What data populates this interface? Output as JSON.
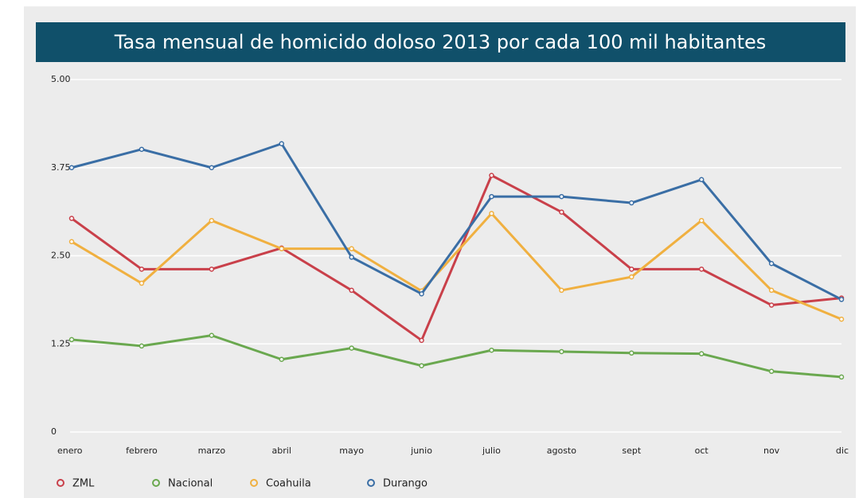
{
  "chart_data": {
    "type": "line",
    "title": "Tasa mensual de homicido doloso 2013 por cada 100 mil habitantes",
    "categories": [
      "enero",
      "febrero",
      "marzo",
      "abril",
      "mayo",
      "junio",
      "julio",
      "agosto",
      "sept",
      "oct",
      "nov",
      "dic"
    ],
    "series": [
      {
        "name": "ZML",
        "color": "#c9404a",
        "values": [
          3.03,
          2.31,
          2.31,
          2.61,
          2.01,
          1.3,
          3.64,
          3.12,
          2.31,
          2.31,
          1.8,
          1.9
        ]
      },
      {
        "name": "Nacional",
        "color": "#6aa84f",
        "values": [
          1.31,
          1.22,
          1.37,
          1.03,
          1.19,
          0.94,
          1.16,
          1.14,
          1.12,
          1.11,
          0.86,
          0.78
        ]
      },
      {
        "name": "Coahuila",
        "color": "#f0b040",
        "values": [
          2.7,
          2.11,
          3.0,
          2.6,
          2.6,
          2.0,
          3.1,
          2.01,
          2.2,
          3.0,
          2.01,
          1.6
        ]
      },
      {
        "name": "Durango",
        "color": "#3a6ea5",
        "values": [
          3.75,
          4.01,
          3.75,
          4.09,
          2.48,
          1.96,
          3.34,
          3.34,
          3.25,
          3.58,
          2.39,
          1.88
        ]
      }
    ],
    "ylim": [
      0,
      5
    ],
    "yticks": [
      0,
      1.25,
      {
        "value": 2.5,
        "label": "2.50"
      },
      3.75,
      {
        "value": 5,
        "label": "5.00"
      }
    ],
    "grid": true,
    "legend": "bottom"
  }
}
